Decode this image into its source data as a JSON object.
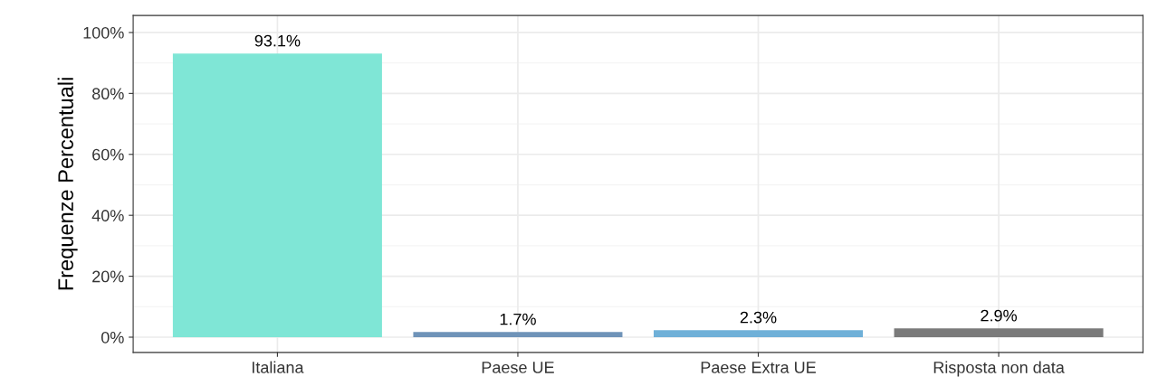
{
  "chart_data": {
    "type": "bar",
    "ylabel": "Frequenze Percentuali",
    "categories": [
      "Italiana",
      "Paese UE",
      "Paese Extra UE",
      "Risposta non data"
    ],
    "values": [
      93.1,
      1.7,
      2.3,
      2.9
    ],
    "colors": [
      "#7fe6d6",
      "#6f93b8",
      "#6fb0d8",
      "#7a7a7a"
    ],
    "value_labels": [
      "93.1%",
      "1.7%",
      "2.3%",
      "2.9%"
    ],
    "ylim": [
      -5,
      105.6
    ],
    "yticks": [
      {
        "value": 0,
        "label": "0%"
      },
      {
        "value": 20,
        "label": "20%"
      },
      {
        "value": 40,
        "label": "40%"
      },
      {
        "value": 60,
        "label": "60%"
      },
      {
        "value": 80,
        "label": "80%"
      },
      {
        "value": 100,
        "label": "100%"
      }
    ],
    "grid": true
  }
}
